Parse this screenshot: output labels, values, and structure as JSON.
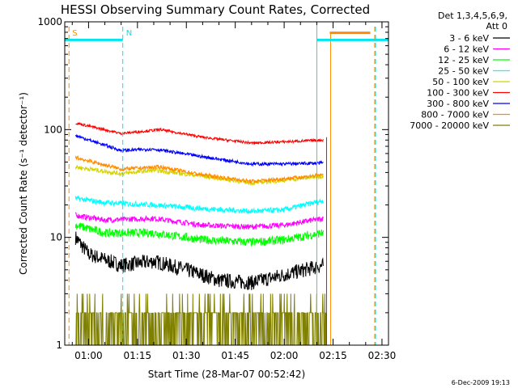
{
  "chart_data": {
    "type": "line",
    "title": "HESSI Observing Summary Count Rates, Corrected",
    "xlabel": "Start Time (28-Mar-07 00:52:42)",
    "ylabel": "Corrected Count Rate (s⁻¹ detector⁻¹)",
    "y_scale": "log",
    "ylim": [
      1,
      1000
    ],
    "xlim": [
      "00:52:42",
      "02:32:00"
    ],
    "x_ticks": [
      "01:00",
      "01:15",
      "01:30",
      "01:45",
      "02:00",
      "02:15",
      "02:30"
    ],
    "y_ticks": [
      "1",
      "10",
      "100",
      "1000"
    ],
    "legend_title": "Det 1,3,4,5,6,9, Att 0",
    "legend_placement": "right",
    "footer_date": "6-Dec-2009 19:13",
    "markers": [
      {
        "label": "S",
        "time": "00:54:00",
        "color": "#ff8c00"
      },
      {
        "label": "N",
        "time": "01:10:30",
        "color": "#00e5ee"
      }
    ],
    "series": [
      {
        "name": "3 - 6 keV",
        "color": "#000000",
        "noise": 0.07,
        "points": [
          [
            "00:56",
            10
          ],
          [
            "01:00",
            7
          ],
          [
            "01:10",
            5.5
          ],
          [
            "01:20",
            6
          ],
          [
            "01:30",
            5
          ],
          [
            "01:40",
            4
          ],
          [
            "01:50",
            3.8
          ],
          [
            "02:00",
            4.5
          ],
          [
            "02:12",
            5.5
          ]
        ]
      },
      {
        "name": "6 - 12 keV",
        "color": "#ff00ff",
        "noise": 0.025,
        "points": [
          [
            "00:56",
            16
          ],
          [
            "01:05",
            14.5
          ],
          [
            "01:20",
            15
          ],
          [
            "01:35",
            13
          ],
          [
            "01:50",
            12.5
          ],
          [
            "02:00",
            13
          ],
          [
            "02:12",
            15
          ]
        ]
      },
      {
        "name": "12 - 25 keV",
        "color": "#00ff00",
        "noise": 0.04,
        "points": [
          [
            "00:56",
            13
          ],
          [
            "01:05",
            11
          ],
          [
            "01:20",
            11
          ],
          [
            "01:35",
            9.5
          ],
          [
            "01:50",
            9
          ],
          [
            "02:00",
            9.5
          ],
          [
            "02:12",
            11
          ]
        ]
      },
      {
        "name": "25 - 50 keV",
        "color": "#00ffff",
        "noise": 0.025,
        "points": [
          [
            "00:56",
            23
          ],
          [
            "01:05",
            21
          ],
          [
            "01:20",
            20
          ],
          [
            "01:35",
            18.5
          ],
          [
            "01:50",
            17.5
          ],
          [
            "02:00",
            18
          ],
          [
            "02:12",
            22
          ]
        ]
      },
      {
        "name": "50 - 100 keV",
        "color": "#d4d400",
        "noise": 0.02,
        "points": [
          [
            "00:56",
            45
          ],
          [
            "01:10",
            39
          ],
          [
            "01:20",
            42
          ],
          [
            "01:35",
            37
          ],
          [
            "01:50",
            32
          ],
          [
            "02:00",
            34
          ],
          [
            "02:12",
            37
          ]
        ]
      },
      {
        "name": "100 - 300 keV",
        "color": "#ff0000",
        "noise": 0.012,
        "points": [
          [
            "00:56",
            115
          ],
          [
            "01:10",
            92
          ],
          [
            "01:22",
            100
          ],
          [
            "01:35",
            85
          ],
          [
            "01:50",
            75
          ],
          [
            "02:00",
            77
          ],
          [
            "02:12",
            80
          ]
        ]
      },
      {
        "name": "300 - 800 keV",
        "color": "#0000ff",
        "noise": 0.015,
        "points": [
          [
            "00:56",
            88
          ],
          [
            "01:10",
            64
          ],
          [
            "01:20",
            66
          ],
          [
            "01:35",
            56
          ],
          [
            "01:50",
            48
          ],
          [
            "02:00",
            48
          ],
          [
            "02:12",
            49
          ]
        ]
      },
      {
        "name": "800 - 7000 keV",
        "color": "#ff8c00",
        "noise": 0.018,
        "points": [
          [
            "00:56",
            55
          ],
          [
            "01:10",
            43
          ],
          [
            "01:22",
            45
          ],
          [
            "01:35",
            38
          ],
          [
            "01:50",
            33
          ],
          [
            "02:00",
            35
          ],
          [
            "02:12",
            38
          ]
        ]
      },
      {
        "name": "7000 - 20000 keV",
        "color": "#808000",
        "noise": 0,
        "points": [
          [
            "00:56",
            2
          ],
          [
            "02:13",
            2
          ]
        ]
      }
    ]
  }
}
